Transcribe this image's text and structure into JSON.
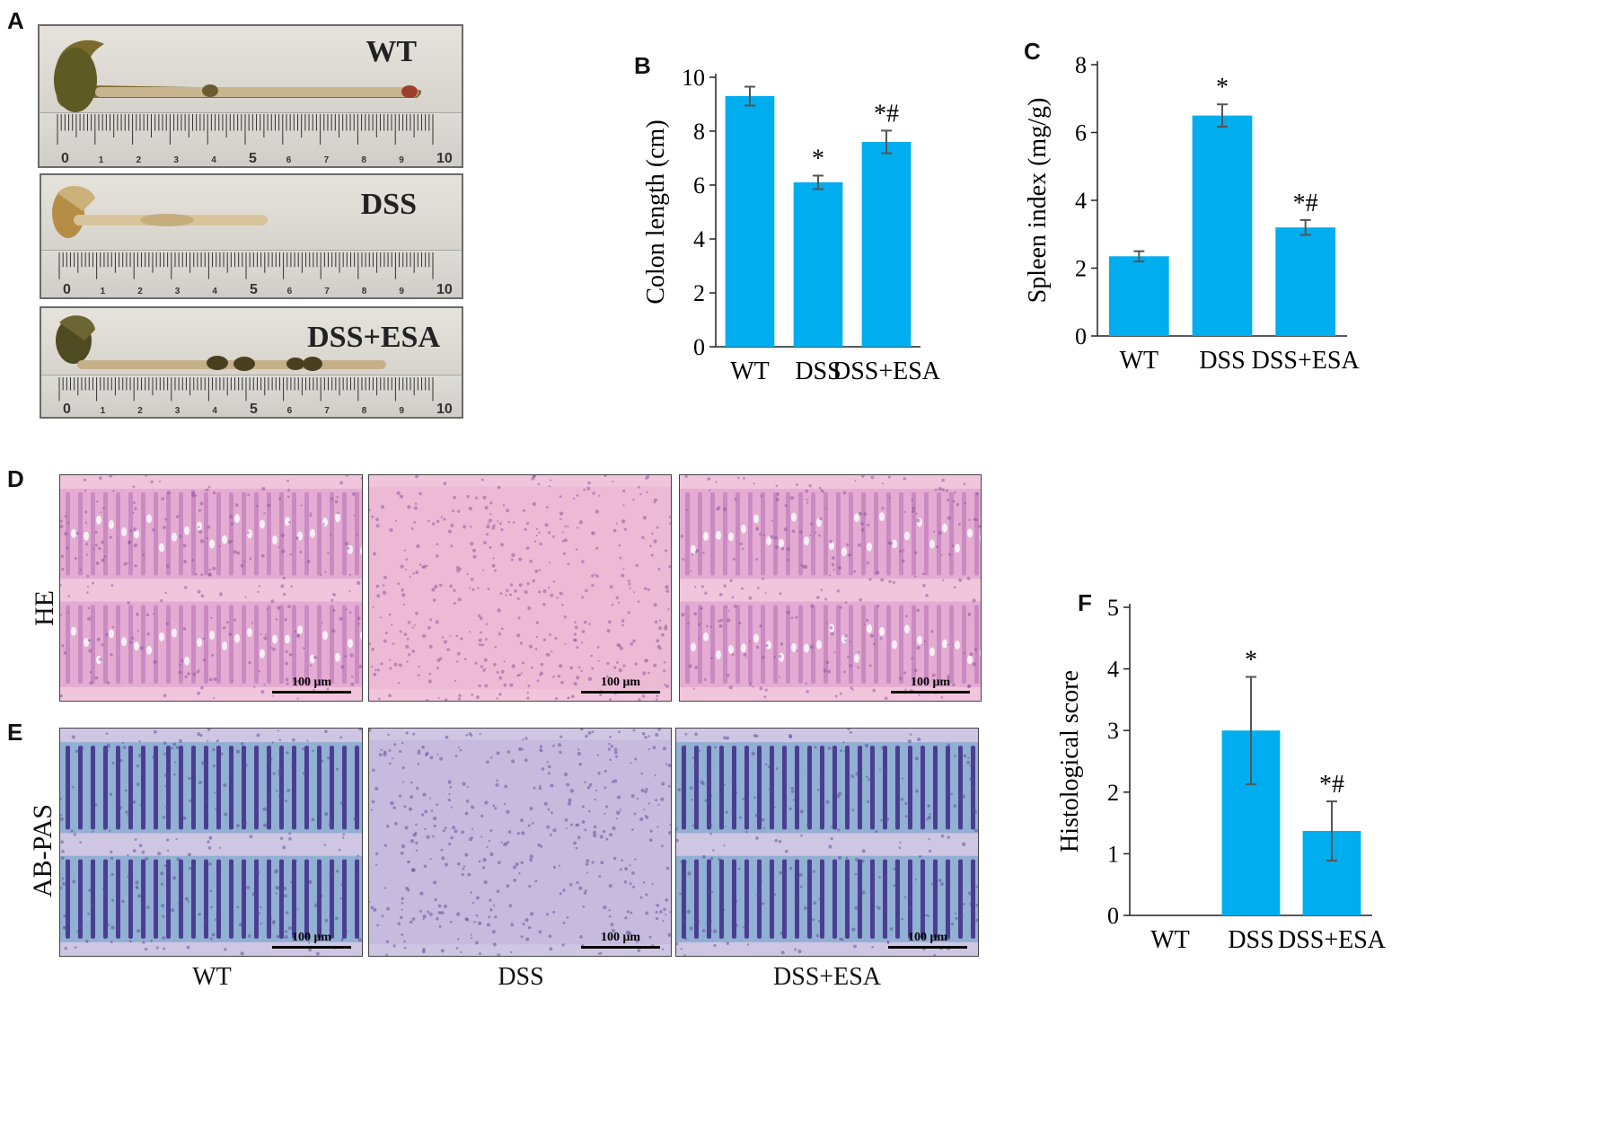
{
  "panels": {
    "A": {
      "label": "A",
      "samples": [
        "WT",
        "DSS",
        "DSS+ESA"
      ],
      "ruler_ticks": [
        "0",
        "1",
        "2",
        "3",
        "4",
        "5",
        "6",
        "7",
        "8",
        "9",
        "10"
      ]
    },
    "B": {
      "label": "B"
    },
    "C": {
      "label": "C"
    },
    "D": {
      "label": "D",
      "row_label": "HE"
    },
    "E": {
      "label": "E",
      "row_label": "AB-PAS"
    },
    "F": {
      "label": "F"
    }
  },
  "micrographs": {
    "scale_label": "100 μm",
    "columns": [
      "WT",
      "DSS",
      "DSS+ESA"
    ],
    "colors": {
      "he_bg": "#f1c6dc",
      "he_cell": "#b46fb3",
      "pas_bg": "#cfc6e3",
      "pas_blue": "#7ea7cf",
      "pas_goblet": "#3c2a82"
    }
  },
  "chart_data": [
    {
      "type": "bar",
      "title": "",
      "categories": [
        "WT",
        "DSS",
        "DSS+ESA"
      ],
      "values": [
        9.3,
        6.1,
        7.6
      ],
      "errors": [
        0.35,
        0.25,
        0.42
      ],
      "annotations": [
        "",
        "*",
        "*#"
      ],
      "xlabel": "",
      "ylabel": "Colon length (cm)",
      "ylim": [
        0,
        10
      ],
      "yticks": [
        "0",
        "2",
        "4",
        "6",
        "8",
        "10"
      ],
      "color": "#00adee"
    },
    {
      "type": "bar",
      "title": "",
      "categories": [
        "WT",
        "DSS",
        "DSS+ESA"
      ],
      "values": [
        2.35,
        6.5,
        3.2
      ],
      "errors": [
        0.15,
        0.33,
        0.22
      ],
      "annotations": [
        "",
        "*",
        "*#"
      ],
      "xlabel": "",
      "ylabel": "Spleen index (mg/g)",
      "ylim": [
        0,
        8
      ],
      "yticks": [
        "0",
        "2",
        "4",
        "6",
        "8"
      ],
      "color": "#00adee"
    },
    {
      "type": "bar",
      "title": "",
      "categories": [
        "WT",
        "DSS",
        "DSS+ESA"
      ],
      "values": [
        0,
        3.0,
        1.37
      ],
      "errors": [
        0,
        0.87,
        0.48
      ],
      "annotations": [
        "",
        "*",
        "*#"
      ],
      "xlabel": "",
      "ylabel": "Histological score",
      "ylim": [
        0,
        5
      ],
      "yticks": [
        "0",
        "1",
        "2",
        "3",
        "4",
        "5"
      ],
      "color": "#00adee"
    }
  ]
}
